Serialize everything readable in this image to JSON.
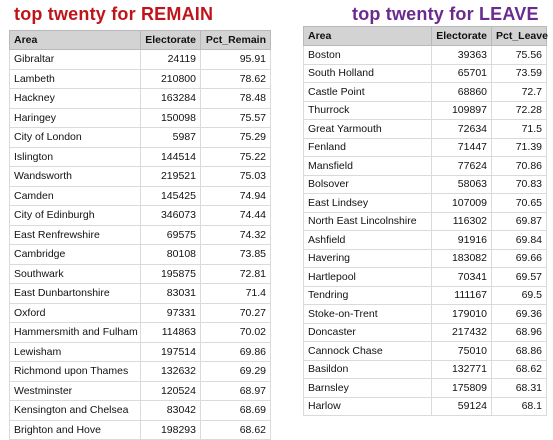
{
  "remain": {
    "title": "top twenty for REMAIN",
    "headers": [
      "Area",
      "Electorate",
      "Pct_Remain"
    ],
    "rows": [
      [
        "Gibraltar",
        "24119",
        "95.91"
      ],
      [
        "Lambeth",
        "210800",
        "78.62"
      ],
      [
        "Hackney",
        "163284",
        "78.48"
      ],
      [
        "Haringey",
        "150098",
        "75.57"
      ],
      [
        "City of London",
        "5987",
        "75.29"
      ],
      [
        "Islington",
        "144514",
        "75.22"
      ],
      [
        "Wandsworth",
        "219521",
        "75.03"
      ],
      [
        "Camden",
        "145425",
        "74.94"
      ],
      [
        "City of Edinburgh",
        "346073",
        "74.44"
      ],
      [
        "East Renfrewshire",
        "69575",
        "74.32"
      ],
      [
        "Cambridge",
        "80108",
        "73.85"
      ],
      [
        "Southwark",
        "195875",
        "72.81"
      ],
      [
        "East Dunbartonshire",
        "83031",
        "71.4"
      ],
      [
        "Oxford",
        "97331",
        "70.27"
      ],
      [
        "Hammersmith and Fulham",
        "114863",
        "70.02"
      ],
      [
        "Lewisham",
        "197514",
        "69.86"
      ],
      [
        "Richmond upon Thames",
        "132632",
        "69.29"
      ],
      [
        "Westminster",
        "120524",
        "68.97"
      ],
      [
        "Kensington and Chelsea",
        "83042",
        "68.69"
      ],
      [
        "Brighton and Hove",
        "198293",
        "68.62"
      ]
    ]
  },
  "leave": {
    "title": "top twenty for LEAVE",
    "headers": [
      "Area",
      "Electorate",
      "Pct_Leave"
    ],
    "rows": [
      [
        "Boston",
        "39363",
        "75.56"
      ],
      [
        "South Holland",
        "65701",
        "73.59"
      ],
      [
        "Castle Point",
        "68860",
        "72.7"
      ],
      [
        "Thurrock",
        "109897",
        "72.28"
      ],
      [
        "Great Yarmouth",
        "72634",
        "71.5"
      ],
      [
        "Fenland",
        "71447",
        "71.39"
      ],
      [
        "Mansfield",
        "77624",
        "70.86"
      ],
      [
        "Bolsover",
        "58063",
        "70.83"
      ],
      [
        "East Lindsey",
        "107009",
        "70.65"
      ],
      [
        "North East Lincolnshire",
        "116302",
        "69.87"
      ],
      [
        "Ashfield",
        "91916",
        "69.84"
      ],
      [
        "Havering",
        "183082",
        "69.66"
      ],
      [
        "Hartlepool",
        "70341",
        "69.57"
      ],
      [
        "Tendring",
        "111167",
        "69.5"
      ],
      [
        "Stoke-on-Trent",
        "179010",
        "69.36"
      ],
      [
        "Doncaster",
        "217432",
        "68.96"
      ],
      [
        "Cannock Chase",
        "75010",
        "68.86"
      ],
      [
        "Basildon",
        "132771",
        "68.62"
      ],
      [
        "Barnsley",
        "175809",
        "68.31"
      ],
      [
        "Harlow",
        "59124",
        "68.1"
      ]
    ]
  },
  "colors": {
    "remain_title": "#c0141b",
    "leave_title": "#6a2a8e",
    "header_bg": "#d3d3d3"
  }
}
